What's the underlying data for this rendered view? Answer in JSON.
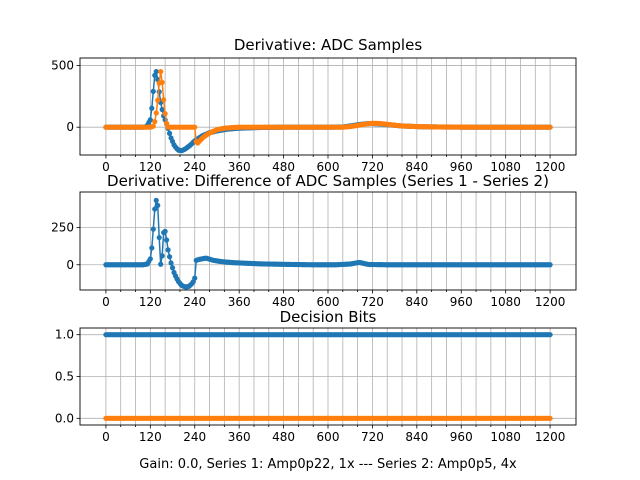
{
  "colors": {
    "series1": "#1f77b4",
    "series2": "#ff7f0e",
    "grid": "#b0b0b0"
  },
  "figure_caption": "Gain: 0.0, Series 1: Amp0p22, 1x --- Series 2: Amp0p5, 4x",
  "chart_data": [
    {
      "type": "line",
      "title": "Derivative: ADC Samples",
      "xlabel": "",
      "ylabel": "",
      "xlim": [
        -70,
        1270
      ],
      "ylim": [
        -225,
        560
      ],
      "xticks": [
        0,
        120,
        240,
        360,
        480,
        600,
        720,
        840,
        960,
        1080,
        1200
      ],
      "xtick_labels": [
        "0",
        "120",
        "240",
        "360",
        "480",
        "600",
        "720",
        "840",
        "960",
        "1080",
        "1200"
      ],
      "yticks": [
        0,
        500
      ],
      "ytick_labels": [
        "0",
        "500"
      ],
      "grid": true,
      "marker": "dot",
      "series": [
        {
          "color": "#1f77b4",
          "points": [
            [
              0,
              0
            ],
            [
              100,
              0
            ],
            [
              110,
              5
            ],
            [
              120,
              60
            ],
            [
              126,
              200
            ],
            [
              130,
              380
            ],
            [
              134,
              460
            ],
            [
              138,
              440
            ],
            [
              142,
              330
            ],
            [
              148,
              200
            ],
            [
              155,
              100
            ],
            [
              165,
              20
            ],
            [
              175,
              -80
            ],
            [
              185,
              -150
            ],
            [
              195,
              -185
            ],
            [
              205,
              -190
            ],
            [
              215,
              -175
            ],
            [
              228,
              -145
            ],
            [
              240,
              -110
            ],
            [
              260,
              -70
            ],
            [
              280,
              -45
            ],
            [
              300,
              -30
            ],
            [
              330,
              -15
            ],
            [
              360,
              -8
            ],
            [
              420,
              -2
            ],
            [
              480,
              0
            ],
            [
              600,
              0
            ],
            [
              640,
              2
            ],
            [
              660,
              10
            ],
            [
              680,
              20
            ],
            [
              700,
              27
            ],
            [
              715,
              30
            ],
            [
              740,
              26
            ],
            [
              770,
              18
            ],
            [
              800,
              10
            ],
            [
              850,
              4
            ],
            [
              900,
              2
            ],
            [
              1000,
              0
            ],
            [
              1200,
              0
            ]
          ]
        },
        {
          "color": "#ff7f0e",
          "points": [
            [
              0,
              0
            ],
            [
              100,
              0
            ],
            [
              120,
              0
            ],
            [
              130,
              10
            ],
            [
              138,
              150
            ],
            [
              143,
              320
            ],
            [
              146,
              430
            ],
            [
              148,
              450
            ],
            [
              151,
              400
            ],
            [
              155,
              250
            ],
            [
              160,
              110
            ],
            [
              164,
              30
            ],
            [
              168,
              0
            ],
            [
              240,
              0
            ],
            [
              242,
              -100
            ],
            [
              246,
              -135
            ],
            [
              252,
              -115
            ],
            [
              260,
              -90
            ],
            [
              270,
              -65
            ],
            [
              285,
              -40
            ],
            [
              300,
              -20
            ],
            [
              320,
              -8
            ],
            [
              340,
              -3
            ],
            [
              360,
              0
            ],
            [
              640,
              0
            ],
            [
              660,
              5
            ],
            [
              680,
              15
            ],
            [
              700,
              25
            ],
            [
              720,
              32
            ],
            [
              740,
              30
            ],
            [
              770,
              20
            ],
            [
              800,
              10
            ],
            [
              840,
              5
            ],
            [
              900,
              2
            ],
            [
              1000,
              0
            ],
            [
              1200,
              0
            ]
          ]
        }
      ]
    },
    {
      "type": "line",
      "title": "Derivative: Difference of ADC Samples (Series 1 - Series 2)",
      "xlabel": "",
      "ylabel": "",
      "xlim": [
        -70,
        1270
      ],
      "ylim": [
        -170,
        490
      ],
      "xticks": [
        0,
        120,
        240,
        360,
        480,
        600,
        720,
        840,
        960,
        1080,
        1200
      ],
      "xtick_labels": [
        "0",
        "120",
        "240",
        "360",
        "480",
        "600",
        "720",
        "840",
        "960",
        "1080",
        "1200"
      ],
      "yticks": [
        0,
        250
      ],
      "ytick_labels": [
        "0",
        "250"
      ],
      "grid": true,
      "marker": "dot",
      "series": [
        {
          "color": "#1f77b4",
          "points": [
            [
              0,
              0
            ],
            [
              100,
              0
            ],
            [
              112,
              5
            ],
            [
              120,
              40
            ],
            [
              126,
              150
            ],
            [
              130,
              330
            ],
            [
              134,
              420
            ],
            [
              137,
              440
            ],
            [
              140,
              400
            ],
            [
              143,
              250
            ],
            [
              146,
              50
            ],
            [
              149,
              -20
            ],
            [
              152,
              60
            ],
            [
              155,
              200
            ],
            [
              158,
              250
            ],
            [
              162,
              200
            ],
            [
              168,
              100
            ],
            [
              175,
              20
            ],
            [
              185,
              -60
            ],
            [
              195,
              -110
            ],
            [
              205,
              -140
            ],
            [
              215,
              -150
            ],
            [
              225,
              -145
            ],
            [
              235,
              -120
            ],
            [
              240,
              -90
            ],
            [
              242,
              5
            ],
            [
              244,
              30
            ],
            [
              250,
              35
            ],
            [
              260,
              40
            ],
            [
              270,
              45
            ],
            [
              280,
              38
            ],
            [
              290,
              30
            ],
            [
              310,
              22
            ],
            [
              340,
              15
            ],
            [
              380,
              10
            ],
            [
              420,
              6
            ],
            [
              480,
              3
            ],
            [
              560,
              0
            ],
            [
              620,
              0
            ],
            [
              660,
              5
            ],
            [
              675,
              12
            ],
            [
              685,
              16
            ],
            [
              695,
              10
            ],
            [
              710,
              2
            ],
            [
              760,
              0
            ],
            [
              1200,
              0
            ]
          ]
        }
      ]
    },
    {
      "type": "scatter",
      "title": "Decision Bits",
      "xlabel": "",
      "ylabel": "",
      "xlim": [
        -70,
        1270
      ],
      "ylim": [
        -0.08,
        1.08
      ],
      "xticks": [
        0,
        120,
        240,
        360,
        480,
        600,
        720,
        840,
        960,
        1080,
        1200
      ],
      "xtick_labels": [
        "0",
        "120",
        "240",
        "360",
        "480",
        "600",
        "720",
        "840",
        "960",
        "1080",
        "1200"
      ],
      "yticks": [
        0.0,
        0.5,
        1.0
      ],
      "ytick_labels": [
        "0.0",
        "0.5",
        "1.0"
      ],
      "grid": true,
      "marker": "dot",
      "series": [
        {
          "color": "#1f77b4",
          "points": [
            [
              0,
              1
            ],
            [
              1200,
              1
            ]
          ]
        },
        {
          "color": "#ff7f0e",
          "points": [
            [
              0,
              0
            ],
            [
              1200,
              0
            ]
          ]
        }
      ]
    }
  ]
}
